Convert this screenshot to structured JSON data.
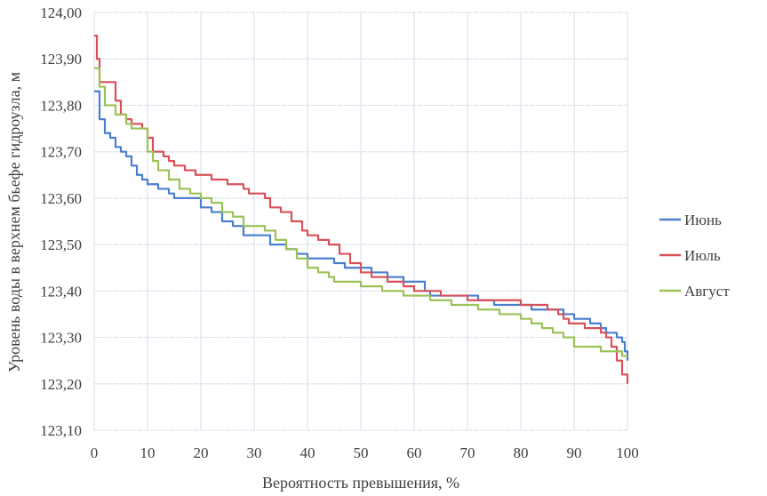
{
  "chart_data": {
    "type": "line",
    "title": "",
    "xlabel": "Вероятность превышения, %",
    "ylabel": "Уровень воды в верхнем бьефе гидроузла,  м",
    "xlim": [
      0,
      100
    ],
    "ylim": [
      123.1,
      124.0
    ],
    "xticks": [
      "0",
      "10",
      "20",
      "30",
      "40",
      "50",
      "60",
      "70",
      "80",
      "90",
      "100"
    ],
    "yticks": [
      "123,10",
      "123,20",
      "123,30",
      "123,40",
      "123,50",
      "123,60",
      "123,70",
      "123,80",
      "123,90",
      "124,00"
    ],
    "grid": true,
    "legend": "right",
    "series": [
      {
        "name": "Июнь",
        "color": "#4a7fd0",
        "x": [
          0,
          0.5,
          1,
          2,
          3,
          4,
          5,
          6,
          7,
          8,
          9,
          10,
          12,
          14,
          15,
          18,
          20,
          22,
          24,
          26,
          28,
          32,
          33,
          35,
          36,
          38,
          40,
          44,
          45,
          47,
          52,
          55,
          58,
          62,
          63,
          70,
          72,
          75,
          80,
          82,
          88,
          90,
          93,
          95,
          96,
          98,
          99,
          99.5,
          100
        ],
        "y": [
          123.83,
          123.83,
          123.77,
          123.74,
          123.73,
          123.71,
          123.7,
          123.69,
          123.67,
          123.65,
          123.64,
          123.63,
          123.62,
          123.61,
          123.6,
          123.6,
          123.58,
          123.57,
          123.55,
          123.54,
          123.52,
          123.52,
          123.5,
          123.5,
          123.49,
          123.48,
          123.47,
          123.47,
          123.46,
          123.45,
          123.44,
          123.43,
          123.42,
          123.4,
          123.39,
          123.39,
          123.38,
          123.37,
          123.37,
          123.36,
          123.35,
          123.34,
          123.33,
          123.32,
          123.31,
          123.3,
          123.29,
          123.27,
          123.25
        ]
      },
      {
        "name": "Июль",
        "color": "#d8515a",
        "x": [
          0,
          0.5,
          1,
          3,
          4,
          5,
          6,
          7,
          9,
          10,
          11,
          13,
          14,
          15,
          17,
          19,
          22,
          25,
          28,
          29,
          32,
          33,
          35,
          37,
          39,
          40,
          42,
          44,
          46,
          48,
          50,
          52,
          55,
          58,
          60,
          65,
          70,
          78,
          80,
          84,
          85,
          87,
          88,
          89,
          92,
          95,
          96,
          97,
          98,
          99,
          100
        ],
        "y": [
          123.95,
          123.9,
          123.85,
          123.85,
          123.81,
          123.78,
          123.77,
          123.76,
          123.75,
          123.73,
          123.7,
          123.69,
          123.68,
          123.67,
          123.66,
          123.65,
          123.64,
          123.63,
          123.62,
          123.61,
          123.6,
          123.58,
          123.57,
          123.55,
          123.53,
          123.52,
          123.51,
          123.5,
          123.48,
          123.46,
          123.44,
          123.43,
          123.42,
          123.41,
          123.4,
          123.39,
          123.38,
          123.38,
          123.37,
          123.37,
          123.36,
          123.35,
          123.34,
          123.33,
          123.32,
          123.31,
          123.3,
          123.28,
          123.25,
          123.22,
          123.2
        ]
      },
      {
        "name": "Август",
        "color": "#9bc257",
        "x": [
          0,
          1,
          2,
          4,
          6,
          7,
          9,
          10,
          11,
          12,
          14,
          16,
          18,
          20,
          22,
          24,
          26,
          28,
          30,
          32,
          34,
          36,
          38,
          40,
          42,
          44,
          45,
          50,
          53,
          54,
          58,
          63,
          67,
          70,
          72,
          76,
          80,
          82,
          84,
          86,
          88,
          90,
          94,
          95,
          98,
          99,
          100
        ],
        "y": [
          123.88,
          123.84,
          123.8,
          123.78,
          123.76,
          123.75,
          123.75,
          123.7,
          123.68,
          123.66,
          123.64,
          123.62,
          123.61,
          123.6,
          123.59,
          123.57,
          123.56,
          123.54,
          123.54,
          123.53,
          123.51,
          123.49,
          123.47,
          123.45,
          123.44,
          123.43,
          123.42,
          123.41,
          123.41,
          123.4,
          123.39,
          123.38,
          123.37,
          123.37,
          123.36,
          123.35,
          123.34,
          123.33,
          123.32,
          123.31,
          123.3,
          123.28,
          123.28,
          123.27,
          123.27,
          123.26,
          123.26
        ]
      }
    ]
  }
}
